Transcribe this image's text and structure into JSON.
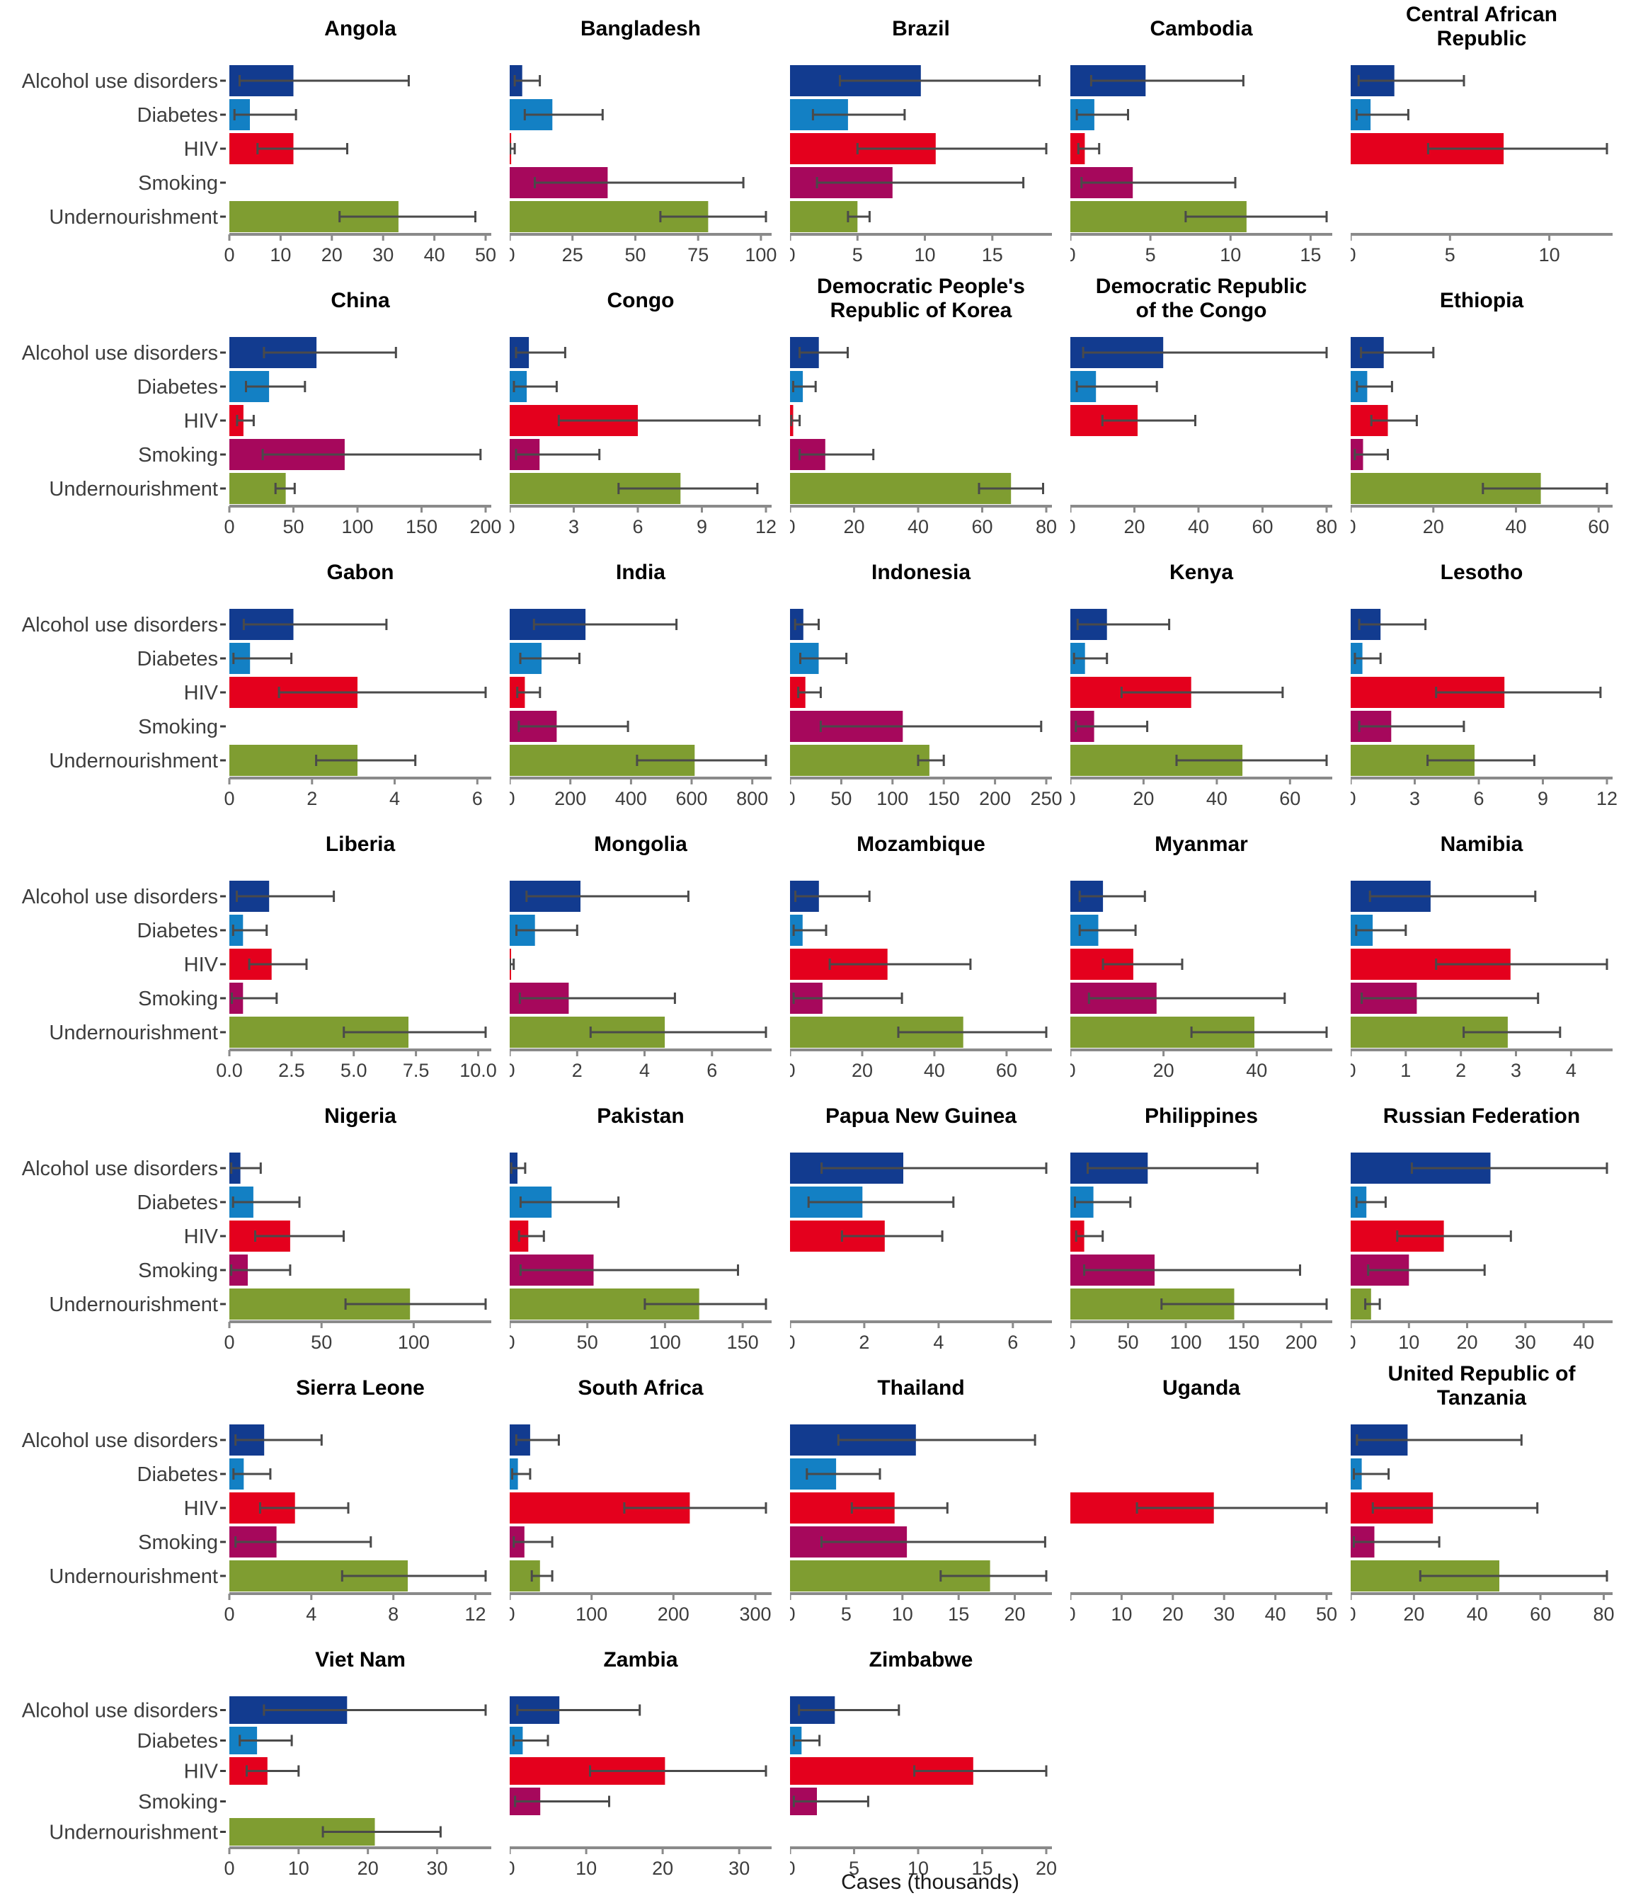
{
  "figure": {
    "x_axis_label": "Cases (thousands)",
    "categories": [
      {
        "key": "alcohol",
        "label": "Alcohol use disorders",
        "color": "#123B8F"
      },
      {
        "key": "diabetes",
        "label": "Diabetes",
        "color": "#1380C4"
      },
      {
        "key": "hiv",
        "label": "HIV",
        "color": "#E4001D"
      },
      {
        "key": "smoking",
        "label": "Smoking",
        "color": "#A6085C"
      },
      {
        "key": "undernourishment",
        "label": "Undernourishment",
        "color": "#7F9D31"
      }
    ],
    "errorbar_color": "#4a4a4a",
    "axis_color": "#8a8a8a",
    "text_color": "#3d3d3d",
    "title_color": "#000000"
  },
  "chart_data": {
    "type": "bar",
    "orientation": "horizontal",
    "unit": "Cases (thousands)",
    "categories": [
      "Alcohol use disorders",
      "Diabetes",
      "HIV",
      "Smoking",
      "Undernourishment"
    ],
    "legend_position": "none",
    "grid": false,
    "charts": [
      {
        "title": "Angola",
        "ticks": [
          0,
          10,
          20,
          30,
          40,
          50
        ],
        "values": [
          12.5,
          4,
          12.5,
          null,
          33
        ],
        "errors": [
          [
            2,
            35
          ],
          [
            1,
            13
          ],
          [
            5.5,
            23
          ],
          null,
          [
            21.5,
            48
          ]
        ]
      },
      {
        "title": "Bangladesh",
        "ticks": [
          0,
          25,
          50,
          75,
          100
        ],
        "values": [
          5,
          17,
          0.6,
          39,
          79
        ],
        "errors": [
          [
            2,
            12
          ],
          [
            6,
            37
          ],
          [
            0.2,
            2
          ],
          [
            10,
            93
          ],
          [
            60,
            102
          ]
        ]
      },
      {
        "title": "Brazil",
        "ticks": [
          0,
          5,
          10,
          15
        ],
        "values": [
          9.7,
          4.3,
          10.8,
          7.6,
          5
        ],
        "errors": [
          [
            3.7,
            18.5
          ],
          [
            1.7,
            8.5
          ],
          [
            5,
            19
          ],
          [
            2,
            17.3
          ],
          [
            4.3,
            5.9
          ]
        ]
      },
      {
        "title": "Cambodia",
        "ticks": [
          0,
          5,
          10,
          15
        ],
        "values": [
          4.7,
          1.5,
          0.9,
          3.9,
          11
        ],
        "errors": [
          [
            1.3,
            10.8
          ],
          [
            0.4,
            3.6
          ],
          [
            0.5,
            1.8
          ],
          [
            0.7,
            10.3
          ],
          [
            7.2,
            16
          ]
        ]
      },
      {
        "title": "Central African Republic",
        "title_lines": [
          "Central African",
          "Republic"
        ],
        "ticks": [
          0,
          5,
          10
        ],
        "values": [
          2.2,
          1,
          7.7,
          null,
          null
        ],
        "errors": [
          [
            0.4,
            5.7
          ],
          [
            0.3,
            2.9
          ],
          [
            3.9,
            12.9
          ],
          null,
          null
        ]
      },
      {
        "title": "China",
        "ticks": [
          0,
          50,
          100,
          150,
          200
        ],
        "values": [
          68,
          31,
          11,
          90,
          44
        ],
        "errors": [
          [
            27,
            130
          ],
          [
            13,
            59
          ],
          [
            6,
            19
          ],
          [
            26,
            196
          ],
          [
            36,
            51
          ]
        ]
      },
      {
        "title": "Congo",
        "ticks": [
          0,
          3,
          6,
          9,
          12
        ],
        "values": [
          0.9,
          0.8,
          6,
          1.4,
          8
        ],
        "errors": [
          [
            0.3,
            2.6
          ],
          [
            0.2,
            2.2
          ],
          [
            2.3,
            11.7
          ],
          [
            0.3,
            4.2
          ],
          [
            5.1,
            11.6
          ]
        ]
      },
      {
        "title": "Democratic People's Republic of Korea",
        "title_lines": [
          "Democratic People's",
          "Republic of Korea"
        ],
        "ticks": [
          0,
          20,
          40,
          60,
          80
        ],
        "values": [
          9,
          4,
          1,
          11,
          69
        ],
        "errors": [
          [
            3,
            18
          ],
          [
            1,
            8
          ],
          [
            0.4,
            3
          ],
          [
            3,
            26
          ],
          [
            59,
            79
          ]
        ]
      },
      {
        "title": "Democratic Republic of the Congo",
        "title_lines": [
          "Democratic Republic",
          "of the Congo"
        ],
        "ticks": [
          0,
          20,
          40,
          60,
          80
        ],
        "values": [
          29,
          8,
          21,
          null,
          null
        ],
        "errors": [
          [
            4,
            80
          ],
          [
            2,
            27
          ],
          [
            10,
            39
          ],
          null,
          null
        ]
      },
      {
        "title": "Ethiopia",
        "ticks": [
          0,
          20,
          40,
          60
        ],
        "values": [
          8,
          4,
          9,
          3,
          46
        ],
        "errors": [
          [
            2.5,
            20
          ],
          [
            1.5,
            10
          ],
          [
            5,
            16
          ],
          [
            1,
            9
          ],
          [
            32,
            62
          ]
        ]
      },
      {
        "title": "Gabon",
        "ticks": [
          0,
          2,
          4,
          6
        ],
        "values": [
          1.55,
          0.5,
          3.1,
          null,
          3.1
        ],
        "errors": [
          [
            0.35,
            3.8
          ],
          [
            0.1,
            1.5
          ],
          [
            1.2,
            6.2
          ],
          null,
          [
            2.1,
            4.5
          ]
        ]
      },
      {
        "title": "India",
        "ticks": [
          0,
          200,
          400,
          600,
          800
        ],
        "values": [
          250,
          105,
          50,
          155,
          610
        ],
        "errors": [
          [
            80,
            550
          ],
          [
            35,
            230
          ],
          [
            25,
            100
          ],
          [
            30,
            390
          ],
          [
            420,
            845
          ]
        ]
      },
      {
        "title": "Indonesia",
        "ticks": [
          0,
          50,
          100,
          150,
          200,
          250
        ],
        "values": [
          13,
          28,
          15,
          110,
          136
        ],
        "errors": [
          [
            5,
            28
          ],
          [
            10,
            55
          ],
          [
            8,
            30
          ],
          [
            30,
            245
          ],
          [
            125,
            150
          ]
        ]
      },
      {
        "title": "Kenya",
        "ticks": [
          0,
          20,
          40,
          60
        ],
        "values": [
          10,
          4,
          33,
          6.5,
          47
        ],
        "errors": [
          [
            2,
            27
          ],
          [
            1,
            10
          ],
          [
            14,
            58
          ],
          [
            1.5,
            21
          ],
          [
            29,
            70
          ]
        ]
      },
      {
        "title": "Lesotho",
        "ticks": [
          0,
          3,
          6,
          9,
          12
        ],
        "values": [
          1.4,
          0.55,
          7.2,
          1.9,
          5.8
        ],
        "errors": [
          [
            0.4,
            3.5
          ],
          [
            0.2,
            1.4
          ],
          [
            4,
            11.7
          ],
          [
            0.4,
            5.3
          ],
          [
            3.6,
            8.6
          ]
        ]
      },
      {
        "title": "Liberia",
        "ticks": [
          0,
          2.5,
          5,
          7.5,
          10
        ],
        "tick_labels": [
          "0.0",
          "2.5",
          "5.0",
          "7.5",
          "10.0"
        ],
        "values": [
          1.6,
          0.55,
          1.7,
          0.55,
          7.2
        ],
        "errors": [
          [
            0.3,
            4.2
          ],
          [
            0.15,
            1.5
          ],
          [
            0.8,
            3.1
          ],
          [
            0.1,
            1.9
          ],
          [
            4.6,
            10.3
          ]
        ]
      },
      {
        "title": "Mongolia",
        "ticks": [
          0,
          2,
          4,
          6
        ],
        "values": [
          2.1,
          0.75,
          0.04,
          1.75,
          4.6
        ],
        "errors": [
          [
            0.5,
            5.3
          ],
          [
            0.2,
            2
          ],
          [
            0.01,
            0.12
          ],
          [
            0.3,
            4.9
          ],
          [
            2.4,
            7.6
          ]
        ]
      },
      {
        "title": "Mozambique",
        "ticks": [
          0,
          20,
          40,
          60
        ],
        "values": [
          8,
          3.5,
          27,
          9,
          48
        ],
        "errors": [
          [
            1.5,
            22
          ],
          [
            1,
            10
          ],
          [
            11,
            50
          ],
          [
            1,
            31
          ],
          [
            30,
            71
          ]
        ]
      },
      {
        "title": "Myanmar",
        "ticks": [
          0,
          20,
          40
        ],
        "values": [
          7,
          6,
          13.5,
          18.5,
          39.5
        ],
        "errors": [
          [
            2,
            16
          ],
          [
            2,
            14
          ],
          [
            7,
            24
          ],
          [
            4,
            46
          ],
          [
            26,
            55
          ]
        ]
      },
      {
        "title": "Namibia",
        "ticks": [
          0,
          1,
          2,
          3,
          4
        ],
        "values": [
          1.45,
          0.4,
          2.9,
          1.2,
          2.85
        ],
        "errors": [
          [
            0.35,
            3.35
          ],
          [
            0.1,
            1
          ],
          [
            1.55,
            4.65
          ],
          [
            0.2,
            3.4
          ],
          [
            2.05,
            3.8
          ]
        ]
      },
      {
        "title": "Nigeria",
        "ticks": [
          0,
          50,
          100
        ],
        "values": [
          6,
          13,
          33,
          10,
          98
        ],
        "errors": [
          [
            1,
            17
          ],
          [
            2,
            38
          ],
          [
            14,
            62
          ],
          [
            1,
            33
          ],
          [
            63,
            139
          ]
        ]
      },
      {
        "title": "Pakistan",
        "ticks": [
          0,
          50,
          100,
          150
        ],
        "values": [
          5,
          27,
          12,
          54,
          122
        ],
        "errors": [
          [
            1,
            10
          ],
          [
            7,
            70
          ],
          [
            6,
            22
          ],
          [
            7,
            147
          ],
          [
            87,
            165
          ]
        ]
      },
      {
        "title": "Papua New Guinea",
        "ticks": [
          0,
          2,
          4,
          6
        ],
        "values": [
          3.05,
          1.95,
          2.55,
          null,
          null
        ],
        "errors": [
          [
            0.85,
            6.9
          ],
          [
            0.5,
            4.4
          ],
          [
            1.4,
            4.1
          ],
          null,
          null
        ]
      },
      {
        "title": "Philippines",
        "ticks": [
          0,
          50,
          100,
          150,
          200
        ],
        "values": [
          67,
          20,
          12,
          73,
          142
        ],
        "errors": [
          [
            15,
            162
          ],
          [
            4,
            52
          ],
          [
            5,
            28
          ],
          [
            12,
            199
          ],
          [
            79,
            222
          ]
        ]
      },
      {
        "title": "Russian Federation",
        "ticks": [
          0,
          10,
          20,
          30,
          40
        ],
        "values": [
          24,
          2.7,
          16,
          10,
          3.5
        ],
        "errors": [
          [
            10.5,
            44
          ],
          [
            1,
            6
          ],
          [
            8,
            27.5
          ],
          [
            3,
            23
          ],
          [
            2.5,
            5
          ]
        ]
      },
      {
        "title": "Sierra Leone",
        "ticks": [
          0,
          4,
          8,
          12
        ],
        "values": [
          1.7,
          0.7,
          3.2,
          2.3,
          8.7
        ],
        "errors": [
          [
            0.3,
            4.5
          ],
          [
            0.2,
            2
          ],
          [
            1.5,
            5.8
          ],
          [
            0.3,
            6.9
          ],
          [
            5.5,
            12.5
          ]
        ]
      },
      {
        "title": "South Africa",
        "ticks": [
          0,
          100,
          200,
          300
        ],
        "values": [
          25,
          10,
          220,
          18,
          37
        ],
        "errors": [
          [
            8,
            60
          ],
          [
            3,
            25
          ],
          [
            140,
            313
          ],
          [
            5,
            52
          ],
          [
            27,
            52
          ]
        ]
      },
      {
        "title": "Thailand",
        "ticks": [
          0,
          5,
          10,
          15,
          20
        ],
        "values": [
          11.2,
          4.1,
          9.3,
          10.4,
          17.8
        ],
        "errors": [
          [
            4.3,
            21.8
          ],
          [
            1.5,
            8
          ],
          [
            5.5,
            14
          ],
          [
            2.8,
            22.7
          ],
          [
            13.4,
            22.8
          ]
        ]
      },
      {
        "title": "Uganda",
        "ticks": [
          0,
          10,
          20,
          30,
          40,
          50
        ],
        "values": [
          null,
          null,
          28,
          null,
          null
        ],
        "errors": [
          null,
          null,
          [
            13,
            50
          ],
          null,
          null
        ]
      },
      {
        "title": "United Republic of Tanzania",
        "title_lines": [
          "United Republic of",
          "Tanzania"
        ],
        "ticks": [
          0,
          20,
          40,
          60,
          80
        ],
        "values": [
          18,
          3.5,
          26,
          7.5,
          47
        ],
        "errors": [
          [
            2,
            54
          ],
          [
            1,
            12
          ],
          [
            7,
            59
          ],
          [
            1,
            28
          ],
          [
            22,
            81
          ]
        ]
      },
      {
        "title": "Viet Nam",
        "ticks": [
          0,
          10,
          20,
          30
        ],
        "values": [
          17,
          4,
          5.5,
          null,
          21
        ],
        "errors": [
          [
            5,
            37
          ],
          [
            1.5,
            9
          ],
          [
            2.5,
            10
          ],
          null,
          [
            13.5,
            30.5
          ]
        ]
      },
      {
        "title": "Zambia",
        "ticks": [
          0,
          10,
          20,
          30
        ],
        "values": [
          6.5,
          1.7,
          20.3,
          4,
          null
        ],
        "errors": [
          [
            1,
            17
          ],
          [
            0.5,
            5
          ],
          [
            10.5,
            33.5
          ],
          [
            0.7,
            13
          ],
          null
        ]
      },
      {
        "title": "Zimbabwe",
        "ticks": [
          0,
          5,
          10,
          15,
          20
        ],
        "values": [
          3.5,
          0.9,
          14.3,
          2.1,
          null
        ],
        "errors": [
          [
            0.7,
            8.5
          ],
          [
            0.3,
            2.3
          ],
          [
            9.7,
            20
          ],
          [
            0.3,
            6.1
          ],
          null
        ]
      }
    ]
  }
}
